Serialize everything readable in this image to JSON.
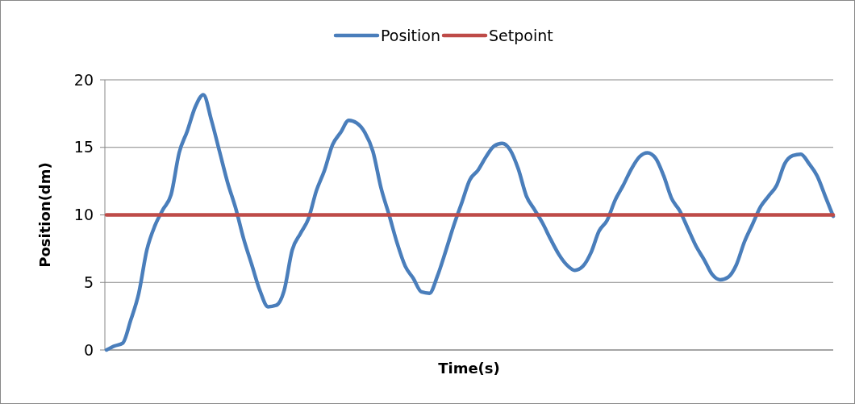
{
  "chart_data": {
    "type": "line",
    "xlabel": "Time(s)",
    "ylabel": "Position(dm)",
    "categories": [
      null,
      null,
      null,
      null,
      null,
      null,
      null,
      null,
      null,
      null,
      null,
      null,
      null,
      null,
      null,
      null,
      null,
      null,
      null,
      null,
      null,
      null,
      null,
      null,
      null,
      null,
      null,
      null,
      null,
      null,
      null,
      null,
      null,
      null,
      null,
      null,
      null,
      null,
      null,
      null,
      null,
      null,
      null,
      null,
      null,
      null,
      null,
      null,
      null,
      null,
      null,
      null,
      null,
      null,
      null,
      null,
      null,
      null,
      null,
      null,
      null,
      null,
      null,
      null,
      null,
      null,
      null,
      null,
      null,
      null,
      null,
      null,
      null,
      null,
      null,
      null,
      null,
      null,
      null,
      null,
      null,
      null,
      null,
      null,
      null,
      null,
      null,
      null,
      null,
      null,
      null
    ],
    "series": [
      {
        "name": "Position",
        "color": "#4a7ebb",
        "values": [
          0,
          0.3,
          0.5,
          2.2,
          4.2,
          7.4,
          9.2,
          10.4,
          11.5,
          14.6,
          16.2,
          18.0,
          18.9,
          17.0,
          14.7,
          12.4,
          10.5,
          8.2,
          6.3,
          4.4,
          3.2,
          3.3,
          4.4,
          7.4,
          8.6,
          9.7,
          11.8,
          13.3,
          15.2,
          16.1,
          17.0,
          16.8,
          16.1,
          14.7,
          12.0,
          10.0,
          7.9,
          6.2,
          5.3,
          4.3,
          4.2,
          5.5,
          7.3,
          9.2,
          10.9,
          12.6,
          13.3,
          14.3,
          15.1,
          15.3,
          14.8,
          13.4,
          11.4,
          10.4,
          9.4,
          8.2,
          7.1,
          6.3,
          5.9,
          6.2,
          7.2,
          8.8,
          9.6,
          11.1,
          12.2,
          13.4,
          14.3,
          14.6,
          14.2,
          12.9,
          11.2,
          10.3,
          9.0,
          7.7,
          6.7,
          5.6,
          5.2,
          5.4,
          6.3,
          8.0,
          9.3,
          10.6,
          11.4,
          12.2,
          13.8,
          14.4,
          14.5,
          13.8,
          12.9,
          11.4,
          9.9
        ]
      },
      {
        "name": "Setpoint",
        "color": "#be4b48",
        "values": [
          10,
          10,
          10,
          10,
          10,
          10,
          10,
          10,
          10,
          10,
          10,
          10,
          10,
          10,
          10,
          10,
          10,
          10,
          10,
          10,
          10,
          10,
          10,
          10,
          10,
          10,
          10,
          10,
          10,
          10,
          10,
          10,
          10,
          10,
          10,
          10,
          10,
          10,
          10,
          10,
          10,
          10,
          10,
          10,
          10,
          10,
          10,
          10,
          10,
          10,
          10,
          10,
          10,
          10,
          10,
          10,
          10,
          10,
          10,
          10,
          10,
          10,
          10,
          10,
          10,
          10,
          10,
          10,
          10,
          10,
          10,
          10,
          10,
          10,
          10,
          10,
          10,
          10,
          10,
          10,
          10,
          10,
          10,
          10,
          10,
          10,
          10,
          10,
          10,
          10,
          10
        ]
      }
    ],
    "ylim": [
      0,
      20
    ],
    "yticks": [
      0,
      5,
      10,
      15,
      20
    ],
    "grid": "y",
    "legend": "top",
    "tick_labels": "y",
    "marker": "none",
    "line_style": "solid"
  }
}
